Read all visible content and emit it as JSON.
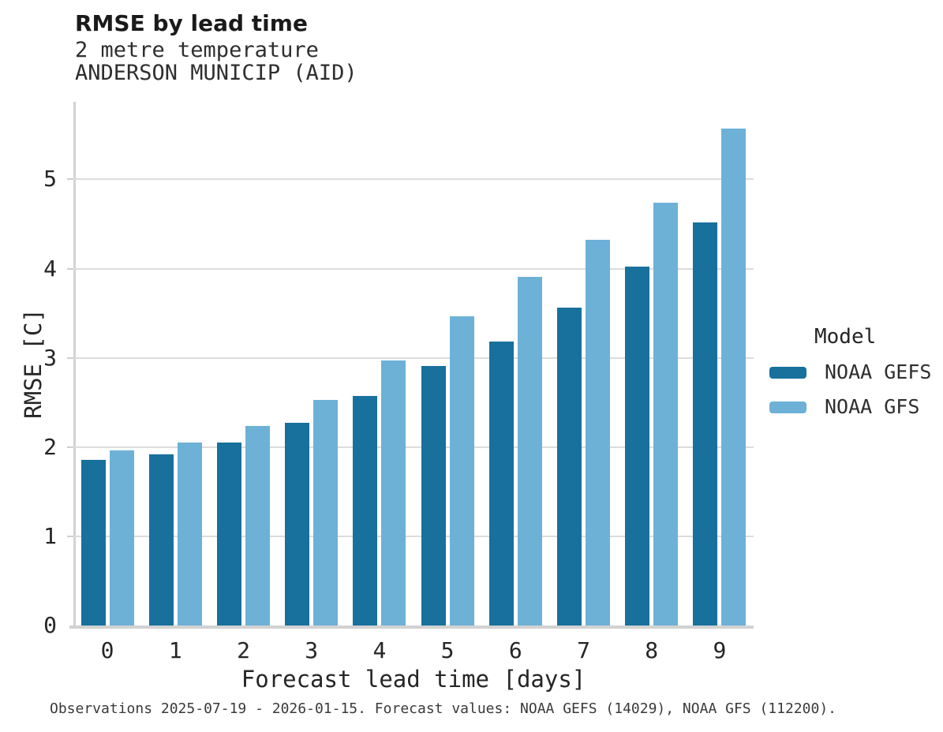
{
  "chart_data": {
    "type": "bar",
    "title": "RMSE by lead time",
    "subtitle1": "2 metre temperature",
    "subtitle2": "ANDERSON MUNICIP (AID)",
    "xlabel": "Forecast lead time [days]",
    "ylabel": "RMSE [C]",
    "categories": [
      "0",
      "1",
      "2",
      "3",
      "4",
      "5",
      "6",
      "7",
      "8",
      "9"
    ],
    "series": [
      {
        "name": "NOAA GEFS",
        "color": "#18709d",
        "values": [
          1.86,
          1.92,
          2.05,
          2.27,
          2.57,
          2.91,
          3.18,
          3.56,
          4.02,
          4.52
        ]
      },
      {
        "name": "NOAA GFS",
        "color": "#6db1d7",
        "values": [
          1.96,
          2.05,
          2.24,
          2.53,
          2.97,
          3.47,
          3.91,
          4.32,
          4.74,
          5.57
        ]
      }
    ],
    "ylim": [
      0,
      5.87
    ],
    "yticks": [
      0,
      1,
      2,
      3,
      4,
      5
    ],
    "grid": true,
    "legend": {
      "title": "Model",
      "position": "right"
    }
  },
  "caption": "Observations 2025-07-19 - 2026-01-15. Forecast values: NOAA GEFS (14029), NOAA GFS (112200).",
  "colors": {
    "grid": "#dcdcdc",
    "spine": "#d2d2d2",
    "tick": "#cfcfcf"
  }
}
